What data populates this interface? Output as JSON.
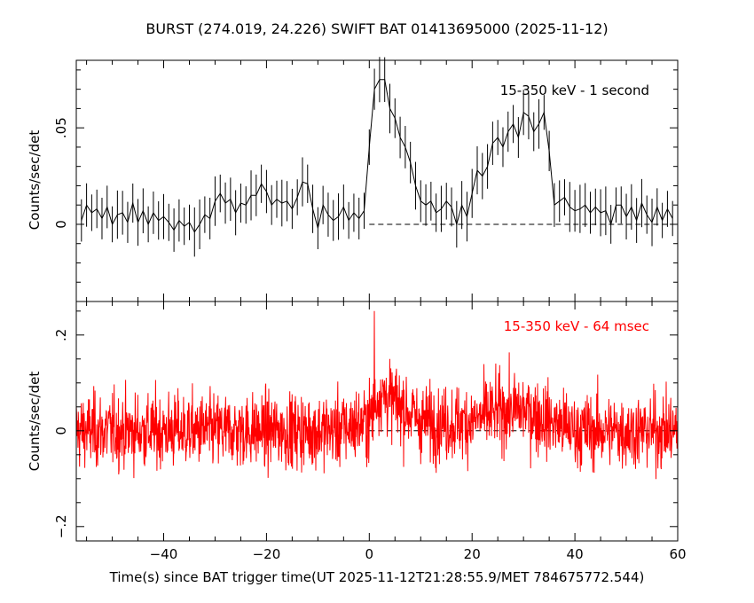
{
  "chart_data": [
    {
      "type": "line",
      "title": "BURST (274.019, 24.226) SWIFT BAT 01413695000 (2025-11-12)",
      "annotation": "15-350 keV - 1 second",
      "ylabel": "Counts/sec/det",
      "xlim": [
        -57,
        60
      ],
      "ylim": [
        -0.04,
        0.085
      ],
      "yticks": [
        0,
        0.05
      ],
      "xticks": [
        -40,
        -20,
        0,
        20,
        40,
        60
      ],
      "color": "#000000",
      "baseline": 0,
      "grid": false,
      "series": [
        {
          "x": [
            -56,
            -55,
            -54,
            -53,
            -52,
            -51,
            -50,
            -49,
            -48,
            -47,
            -46,
            -45,
            -44,
            -43,
            -42,
            -41,
            -40,
            -39,
            -38,
            -37,
            -36,
            -35,
            -34,
            -33,
            -32,
            -31,
            -30,
            -29,
            -28,
            -27,
            -26,
            -25,
            -24,
            -23,
            -22,
            -21,
            -20,
            -19,
            -18,
            -17,
            -16,
            -15,
            -14,
            -13,
            -12,
            -11,
            -10,
            -9,
            -8,
            -7,
            -6,
            -5,
            -4,
            -3,
            -2,
            -1,
            0,
            1,
            2,
            3,
            4,
            5,
            6,
            7,
            8,
            9,
            10,
            11,
            12,
            13,
            14,
            15,
            16,
            17,
            18,
            19,
            20,
            21,
            22,
            23,
            24,
            25,
            26,
            27,
            28,
            29,
            30,
            31,
            32,
            33,
            34,
            35,
            36,
            37,
            38,
            39,
            40,
            41,
            42,
            43,
            44,
            45,
            46,
            47,
            48,
            49,
            50,
            51,
            52,
            53,
            54,
            55,
            56,
            57,
            58,
            59
          ],
          "y": [
            0.002,
            0.01,
            0.006,
            0.008,
            0.003,
            0.009,
            0.0,
            0.005,
            0.006,
            0.001,
            0.011,
            0.001,
            0.007,
            0.0,
            0.006,
            0.002,
            0.004,
            0.001,
            -0.003,
            0.002,
            -0.001,
            0.001,
            -0.004,
            0.0,
            0.005,
            0.003,
            0.012,
            0.016,
            0.011,
            0.013,
            0.006,
            0.011,
            0.01,
            0.015,
            0.015,
            0.021,
            0.017,
            0.01,
            0.013,
            0.011,
            0.012,
            0.008,
            0.014,
            0.022,
            0.021,
            0.008,
            -0.002,
            0.01,
            0.005,
            0.002,
            0.004,
            0.009,
            0.002,
            0.006,
            0.003,
            0.007,
            0.04,
            0.07,
            0.075,
            0.075,
            0.06,
            0.055,
            0.045,
            0.04,
            0.032,
            0.02,
            0.012,
            0.01,
            0.012,
            0.006,
            0.008,
            0.012,
            0.009,
            0.0,
            0.01,
            0.004,
            0.016,
            0.028,
            0.025,
            0.03,
            0.042,
            0.045,
            0.04,
            0.048,
            0.052,
            0.045,
            0.058,
            0.056,
            0.048,
            0.052,
            0.058,
            0.038,
            0.01,
            0.012,
            0.014,
            0.009,
            0.007,
            0.008,
            0.01,
            0.006,
            0.009,
            0.006,
            0.007,
            0.0,
            0.01,
            0.01,
            0.004,
            0.009,
            0.002,
            0.011,
            0.005,
            0.001,
            0.009,
            0.002,
            0.008,
            0.003
          ]
        }
      ]
    },
    {
      "type": "line",
      "annotation": "15-350 keV - 64 msec",
      "xlabel": "Time(s) since BAT trigger time(UT 2025-11-12T21:28:55.9/MET 784675772.544)",
      "ylabel": "Counts/sec/det",
      "xlim": [
        -57,
        60
      ],
      "ylim": [
        -0.23,
        0.27
      ],
      "yticks": [
        -0.2,
        0,
        0.2
      ],
      "xticks": [
        -40,
        -20,
        0,
        20,
        40,
        60
      ],
      "color": "#ff0000",
      "baseline": 0,
      "grid": false,
      "envelope": {
        "x": [
          -57,
          -50,
          -40,
          -30,
          -20,
          -10,
          -5,
          0,
          2,
          5,
          10,
          15,
          20,
          25,
          30,
          35,
          40,
          50,
          60
        ],
        "mean": [
          0.0,
          0.0,
          0.0,
          0.0,
          0.0,
          0.0,
          0.005,
          0.02,
          0.08,
          0.06,
          0.02,
          0.015,
          0.02,
          0.04,
          0.045,
          0.02,
          0.0,
          0.0,
          0.0
        ],
        "peak_value": 0.25,
        "peak_x": 1.0,
        "spread": 0.07
      }
    }
  ]
}
